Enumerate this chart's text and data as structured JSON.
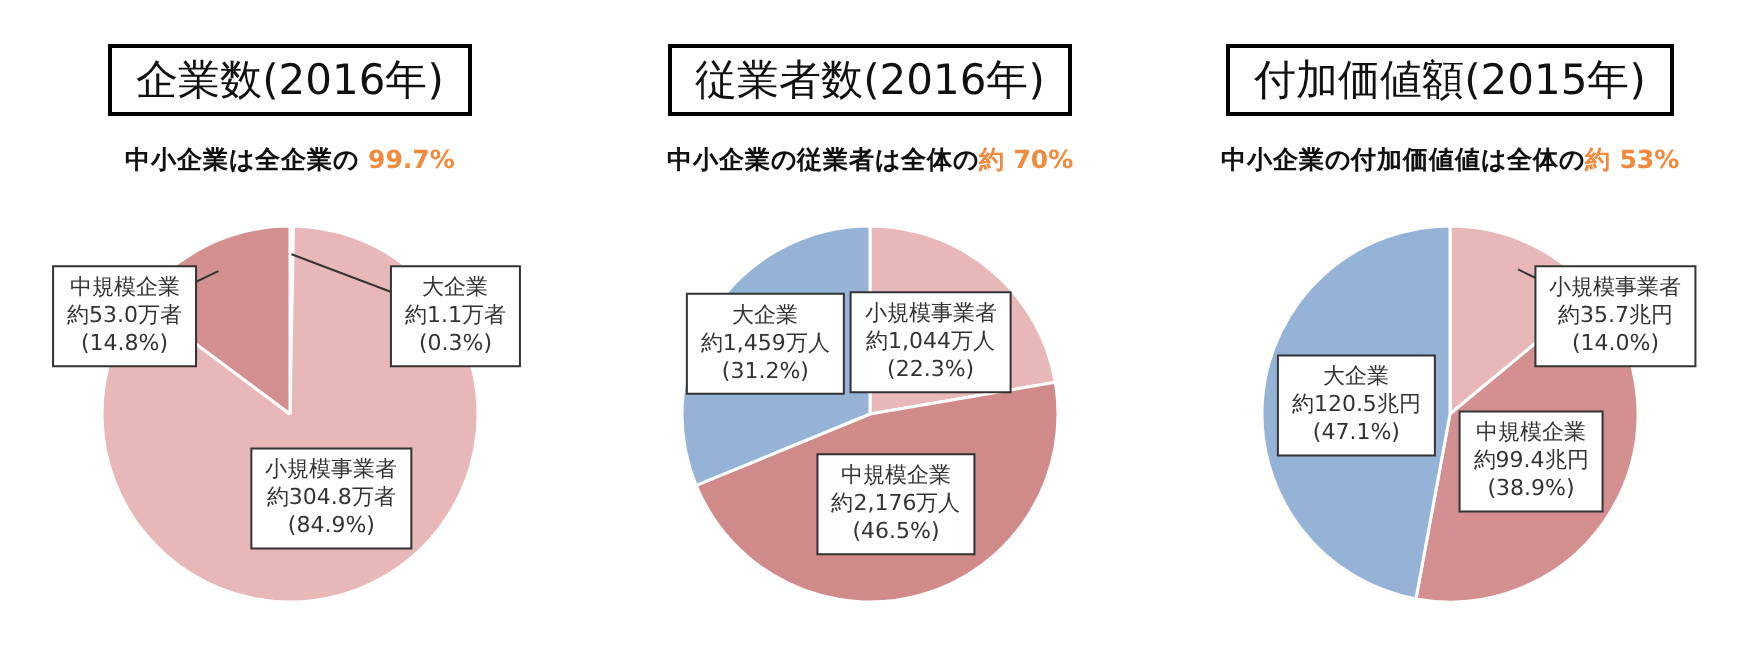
{
  "chart_data": [
    {
      "type": "pie",
      "title": "企業数(2016年)",
      "subtitle": "中小企業は全企業の 99.7%",
      "categories": [
        "大企業",
        "小規模事業者",
        "中規模企業"
      ],
      "values": [
        0.3,
        84.9,
        14.8
      ],
      "colors": [
        "#d0d0d8",
        "#e8b8b8",
        "#d49090"
      ],
      "value_labels": [
        "約1.1万者\n(0.3%)",
        "約304.8万者\n(84.9%)",
        "約53.0万者\n(14.8%)"
      ]
    },
    {
      "type": "pie",
      "title": "従業者数(2016年)",
      "subtitle": "中小企業の従業者は全体の約 70%",
      "categories": [
        "小規模事業者",
        "中規模企業",
        "大企業"
      ],
      "values": [
        22.3,
        46.5,
        31.2
      ],
      "colors": [
        "#e8b8b8",
        "#d08a8a",
        "#95b3d7"
      ],
      "value_labels": [
        "約1,044万人\n(22.3%)",
        "約2,176万人\n(46.5%)",
        "約1,459万人\n(31.2%)"
      ]
    },
    {
      "type": "pie",
      "title": "付加価値額(2015年)",
      "subtitle": "中小企業の付加価値値は全体の約 53%",
      "categories": [
        "小規模事業者",
        "中規模企業",
        "大企業"
      ],
      "values": [
        14.0,
        38.9,
        47.1
      ],
      "colors": [
        "#e8b8b8",
        "#d49090",
        "#95b3d7"
      ],
      "value_labels": [
        "約35.7兆円\n(14.0%)",
        "約99.4兆円\n(38.9%)",
        "約120.5兆円\n(47.1%)"
      ]
    }
  ]
}
